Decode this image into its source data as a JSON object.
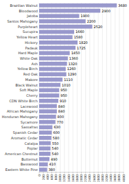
{
  "chart_data": {
    "type": "bar",
    "orientation": "horizontal",
    "categories": [
      "Brazilian Walnut",
      "Bloodwood",
      "Jatoba",
      "Santos Mahogany",
      "Purpleheart",
      "Sucupira",
      "Yellow Heart",
      "Hickory",
      "Padauk",
      "Hard Maple",
      "White Oak",
      "Ash",
      "Yellow Birch",
      "Red Oak",
      "Makore",
      "Black Walnut",
      "Soft Maple",
      "Cherry",
      "CDN White Birch",
      "Lacewood",
      "African Mahogany",
      "Honduran Mahogany",
      "Sycamore",
      "Sassafras",
      "Spanish Cedar",
      "Aromatic Cedar",
      "Catalpa",
      "Poplar",
      "American Chestnut",
      "Butternut",
      "Basswood",
      "Eastern White Pine"
    ],
    "values": [
      3680,
      2900,
      1900,
      2200,
      2520,
      1660,
      1580,
      1820,
      1725,
      1450,
      1360,
      1320,
      1260,
      1290,
      1110,
      1010,
      950,
      950,
      910,
      840,
      840,
      800,
      770,
      630,
      600,
      580,
      550,
      540,
      540,
      490,
      410,
      380
    ],
    "color": "#9999cc",
    "xlim": [
      0,
      4000
    ],
    "xticks": [
      0,
      200,
      400,
      600,
      800,
      1000,
      1200,
      1400,
      1600,
      1800,
      2000,
      2200,
      2400,
      2600,
      2800,
      3000,
      3200,
      3400,
      3600,
      3800,
      4000
    ],
    "grid": true,
    "data_labels": true
  }
}
